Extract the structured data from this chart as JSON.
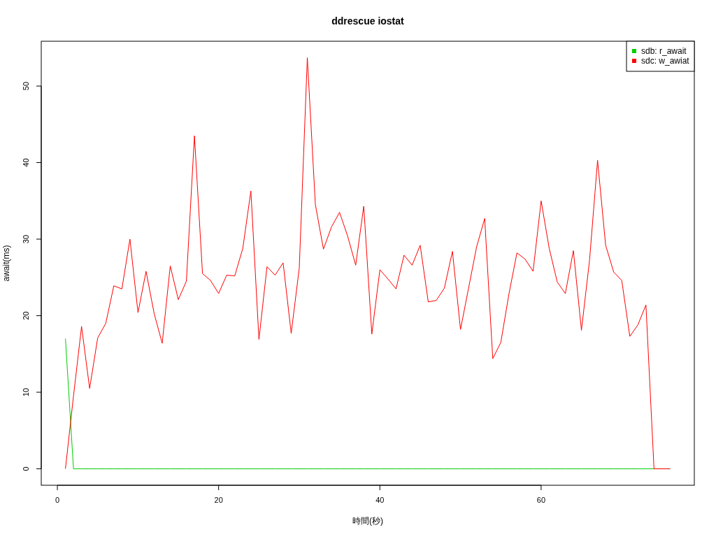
{
  "chart_data": {
    "type": "line",
    "title": "ddrescue iostat",
    "xlabel": "時間(秒)",
    "ylabel": "await(ms)",
    "x": [
      1,
      2,
      3,
      4,
      5,
      6,
      7,
      8,
      9,
      10,
      11,
      12,
      13,
      14,
      15,
      16,
      17,
      18,
      19,
      20,
      21,
      22,
      23,
      24,
      25,
      26,
      27,
      28,
      29,
      30,
      31,
      32,
      33,
      34,
      35,
      36,
      37,
      38,
      39,
      40,
      41,
      42,
      43,
      44,
      45,
      46,
      47,
      48,
      49,
      50,
      51,
      52,
      53,
      54,
      55,
      56,
      57,
      58,
      59,
      60,
      61,
      62,
      63,
      64,
      65,
      66,
      67,
      68,
      69,
      70,
      71,
      72,
      73,
      74,
      75,
      76
    ],
    "series": [
      {
        "name": "sdb: r_await",
        "color": "#00cd00",
        "values": [
          17,
          0,
          0,
          0,
          0,
          0,
          0,
          0,
          0,
          0,
          0,
          0,
          0,
          0,
          0,
          0,
          0,
          0,
          0,
          0,
          0,
          0,
          0,
          0,
          0,
          0,
          0,
          0,
          0,
          0,
          0,
          0,
          0,
          0,
          0,
          0,
          0,
          0,
          0,
          0,
          0,
          0,
          0,
          0,
          0,
          0,
          0,
          0,
          0,
          0,
          0,
          0,
          0,
          0,
          0,
          0,
          0,
          0,
          0,
          0,
          0,
          0,
          0,
          0,
          0,
          0,
          0,
          0,
          0,
          0,
          0,
          0,
          0,
          0,
          0,
          0
        ]
      },
      {
        "name": "sdc: w_awiat",
        "color": "#ff0000",
        "values": [
          0,
          9.5,
          18.6,
          10.5,
          17.1,
          19,
          23.9,
          23.5,
          30,
          20.4,
          25.8,
          20.3,
          16.4,
          26.5,
          22.1,
          24.5,
          43.5,
          25.5,
          24.6,
          22.9,
          25.3,
          25.2,
          28.8,
          36.3,
          16.9,
          26.4,
          25.3,
          26.9,
          17.7,
          26.2,
          53.7,
          34.5,
          28.7,
          31.6,
          33.5,
          30.4,
          26.6,
          34.3,
          17.6,
          26,
          24.8,
          23.5,
          27.9,
          26.6,
          29.2,
          21.8,
          22,
          23.6,
          28.4,
          18.2,
          23.6,
          29,
          32.7,
          14.4,
          16.5,
          22.8,
          28.2,
          27.4,
          25.8,
          35,
          28.8,
          24.4,
          22.9,
          28.5,
          18.1,
          27.2,
          40.3,
          29.2,
          25.7,
          24.6,
          17.3,
          18.8,
          21.4,
          0,
          0,
          0
        ]
      }
    ],
    "xlim": [
      -2,
      79
    ],
    "ylim": [
      -2.15,
      55.85
    ],
    "xticks": [
      0,
      20,
      40,
      60
    ],
    "yticks": [
      0,
      10,
      20,
      30,
      40,
      50
    ],
    "legend": "top right"
  }
}
